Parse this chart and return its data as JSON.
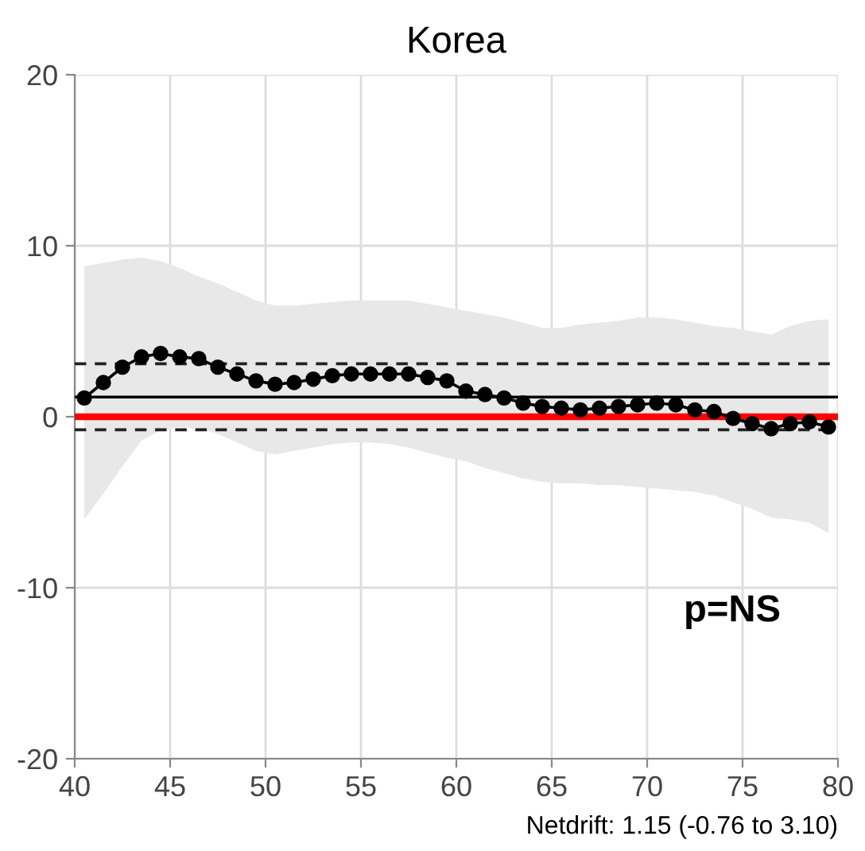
{
  "chart_data": {
    "type": "line",
    "title": "Korea",
    "xlim": [
      40,
      80
    ],
    "xticks": [
      40,
      45,
      50,
      55,
      60,
      65,
      70,
      75,
      80
    ],
    "ylim": [
      -20,
      20
    ],
    "yticks": [
      -20,
      -10,
      0,
      10,
      20
    ],
    "grid": true,
    "marker": "circle",
    "line_style": "solid",
    "series": [
      {
        "color": "#000000",
        "x": [
          40.5,
          41.5,
          42.5,
          43.5,
          44.5,
          45.5,
          46.5,
          47.5,
          48.5,
          49.5,
          50.5,
          51.5,
          52.5,
          53.5,
          54.5,
          55.5,
          56.5,
          57.5,
          58.5,
          59.5,
          60.5,
          61.5,
          62.5,
          63.5,
          64.5,
          65.5,
          66.5,
          67.5,
          68.5,
          69.5,
          70.5,
          71.5,
          72.5,
          73.5,
          74.5,
          75.5,
          76.5,
          77.5,
          78.5,
          79.5
        ],
        "values": [
          1.1,
          2.0,
          2.9,
          3.5,
          3.7,
          3.5,
          3.4,
          2.9,
          2.5,
          2.1,
          1.9,
          2.0,
          2.2,
          2.4,
          2.5,
          2.5,
          2.5,
          2.5,
          2.3,
          2.1,
          1.5,
          1.3,
          1.1,
          0.8,
          0.6,
          0.5,
          0.4,
          0.5,
          0.6,
          0.7,
          0.8,
          0.7,
          0.4,
          0.3,
          -0.1,
          -0.4,
          -0.7,
          -0.4,
          -0.3,
          -0.6
        ],
        "upper": [
          8.8,
          9.0,
          9.2,
          9.3,
          9.1,
          8.7,
          8.2,
          7.8,
          7.3,
          6.8,
          6.5,
          6.5,
          6.6,
          6.7,
          6.8,
          6.8,
          6.8,
          6.8,
          6.6,
          6.4,
          6.2,
          6.0,
          5.8,
          5.5,
          5.2,
          5.2,
          5.4,
          5.5,
          5.6,
          5.8,
          5.8,
          5.7,
          5.5,
          5.3,
          5.2,
          5.0,
          4.8,
          5.3,
          5.6,
          5.7
        ],
        "lower": [
          -6.0,
          -4.5,
          -2.9,
          -1.4,
          -0.8,
          -0.6,
          -0.7,
          -1.0,
          -1.5,
          -2.0,
          -2.2,
          -2.0,
          -1.8,
          -1.6,
          -1.5,
          -1.5,
          -1.6,
          -1.8,
          -2.1,
          -2.4,
          -2.6,
          -3.0,
          -3.3,
          -3.6,
          -3.8,
          -3.9,
          -3.9,
          -4.0,
          -4.0,
          -4.1,
          -4.2,
          -4.3,
          -4.4,
          -4.6,
          -5.0,
          -5.4,
          -5.9,
          -6.0,
          -6.2,
          -6.8
        ]
      }
    ],
    "ref_lines": [
      {
        "axis": "y",
        "value": 0,
        "color": "#ff0000",
        "line_style": "solid"
      },
      {
        "axis": "y",
        "value": 1.15,
        "color": "#000000",
        "line_style": "solid"
      },
      {
        "axis": "y",
        "value": 3.1,
        "color": "#222222",
        "line_style": "dashed"
      },
      {
        "axis": "y",
        "value": -0.76,
        "color": "#222222",
        "line_style": "dashed"
      }
    ],
    "annotations": [
      "p=NS",
      "Netdrift: 1.15 (-0.76 to 3.10)"
    ]
  }
}
